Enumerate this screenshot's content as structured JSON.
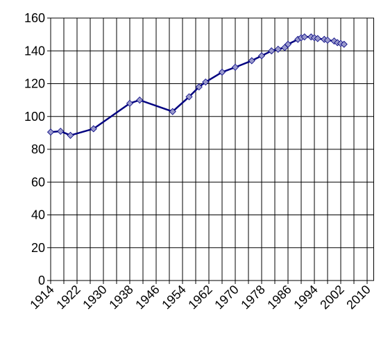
{
  "chart_data": {
    "type": "line",
    "x": [
      1914,
      1917,
      1920,
      1927,
      1938,
      1941,
      1951,
      1956,
      1959,
      1961,
      1966,
      1970,
      1975,
      1978,
      1981,
      1983,
      1985,
      1986,
      1989,
      1990,
      1991,
      1993,
      1994,
      1995,
      1997,
      1998,
      2000,
      2001,
      2002,
      2003
    ],
    "values": [
      90.5,
      91,
      88.5,
      92.5,
      108,
      110,
      103,
      112,
      118,
      121,
      127,
      130,
      134,
      137,
      140,
      141,
      142,
      144,
      147,
      148,
      148.5,
      148.5,
      148,
      147.5,
      147,
      146.5,
      146,
      145,
      144.5,
      144
    ],
    "color": "#000080",
    "marker_color": "#9999cc",
    "xlim": [
      1914,
      2012
    ],
    "xticks": [
      1914,
      1922,
      1930,
      1938,
      1946,
      1954,
      1962,
      1970,
      1978,
      1986,
      1994,
      2002,
      2010
    ],
    "xminorticks": [
      1918,
      1926,
      1934,
      1942,
      1950,
      1958,
      1966,
      1974,
      1982,
      1990,
      1998,
      2006
    ],
    "ylim": [
      0,
      160
    ],
    "yticks": [
      0,
      20,
      40,
      60,
      80,
      100,
      120,
      140,
      160
    ],
    "grid": true
  }
}
